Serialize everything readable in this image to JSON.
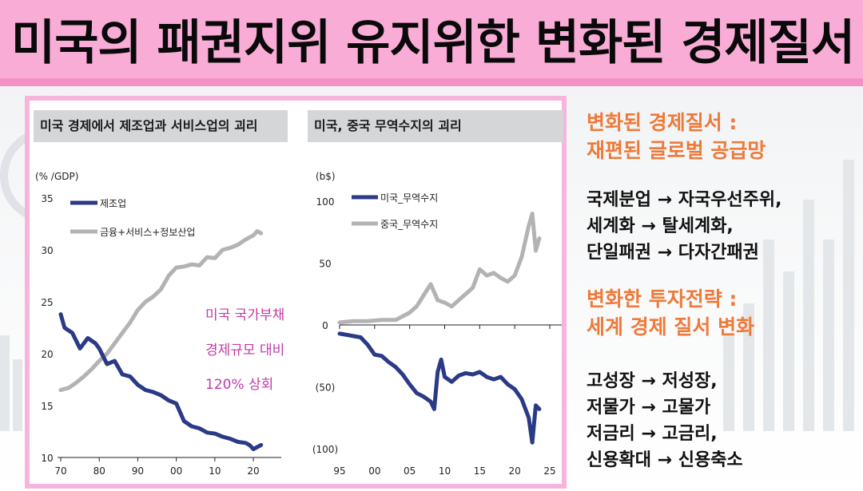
{
  "title": "미국의 패권지위 유지위한 변화된 경제질서",
  "left_chart": {
    "header": "미국 경제에서 제조업과 서비스업의 괴리",
    "unit_label": "(% /GDP)",
    "annotation": [
      "미국 국가부채",
      "경제규모 대비",
      "120% 상회"
    ],
    "chart_data": {
      "type": "line",
      "title": "미국 경제에서 제조업과 서비스업의 괴리",
      "ylabel": "(% /GDP)",
      "x_ticks": [
        "70",
        "80",
        "90",
        "00",
        "10",
        "20"
      ],
      "y_ticks": [
        "35",
        "30",
        "25",
        "20",
        "15",
        "10"
      ],
      "xlim": [
        1970,
        2026
      ],
      "ylim": [
        10,
        35
      ],
      "legend_position": "top-left",
      "series": [
        {
          "name": "제조업",
          "color": "#2b3a86",
          "x": [
            1970,
            1971,
            1973,
            1975,
            1977,
            1979,
            1980,
            1982,
            1984,
            1986,
            1988,
            1990,
            1992,
            1994,
            1996,
            1998,
            2000,
            2002,
            2004,
            2006,
            2008,
            2010,
            2012,
            2014,
            2016,
            2018,
            2019,
            2020,
            2021,
            2022
          ],
          "values": [
            23.8,
            22.5,
            22.0,
            20.5,
            21.5,
            21.0,
            20.5,
            19.0,
            19.3,
            18.0,
            17.8,
            17.0,
            16.5,
            16.3,
            16.0,
            15.5,
            15.2,
            13.5,
            13.0,
            12.8,
            12.4,
            12.3,
            12.0,
            11.8,
            11.5,
            11.4,
            11.2,
            10.8,
            11.0,
            11.2
          ]
        },
        {
          "name": "금융+서비스+정보산업",
          "color": "#b3b3b3",
          "x": [
            1970,
            1972,
            1974,
            1976,
            1978,
            1980,
            1982,
            1984,
            1986,
            1988,
            1990,
            1992,
            1994,
            1996,
            1998,
            2000,
            2002,
            2004,
            2006,
            2008,
            2010,
            2012,
            2014,
            2016,
            2018,
            2020,
            2021,
            2022
          ],
          "values": [
            16.5,
            16.7,
            17.2,
            17.8,
            18.5,
            19.3,
            20.0,
            21.0,
            22.0,
            23.0,
            24.2,
            25.0,
            25.5,
            26.2,
            27.5,
            28.3,
            28.4,
            28.6,
            28.5,
            29.3,
            29.2,
            30.0,
            30.2,
            30.5,
            31.0,
            31.4,
            31.8,
            31.6
          ]
        }
      ]
    }
  },
  "right_chart": {
    "header": "미국, 중국 무역수지의 괴리",
    "unit_label": "(b$)",
    "chart_data": {
      "type": "line",
      "title": "미국, 중국 무역수지의 괴리",
      "ylabel": "(b$)",
      "x_ticks": [
        "95",
        "00",
        "05",
        "10",
        "15",
        "20",
        "25"
      ],
      "y_ticks": [
        "100",
        "50",
        "0",
        "(50)",
        "(100)"
      ],
      "xlim": [
        1995,
        2025
      ],
      "ylim": [
        -100,
        100
      ],
      "legend_position": "top-left",
      "series": [
        {
          "name": "미국_무역수지",
          "color": "#2b3a86",
          "x": [
            1995,
            1996,
            1997,
            1998,
            1999,
            2000,
            2001,
            2002,
            2003,
            2004,
            2005,
            2006,
            2007,
            2008,
            2008.5,
            2009,
            2009.5,
            2010,
            2011,
            2012,
            2013,
            2014,
            2015,
            2016,
            2017,
            2018,
            2019,
            2020,
            2021,
            2022,
            2022.5,
            2023,
            2023.5
          ],
          "values": [
            -7,
            -8,
            -9,
            -10,
            -16,
            -24,
            -25,
            -30,
            -34,
            -40,
            -48,
            -55,
            -58,
            -62,
            -68,
            -38,
            -28,
            -42,
            -46,
            -41,
            -39,
            -40,
            -38,
            -42,
            -44,
            -42,
            -48,
            -52,
            -60,
            -75,
            -95,
            -65,
            -68
          ]
        },
        {
          "name": "중국_무역수지",
          "color": "#b3b3b3",
          "x": [
            1995,
            1997,
            1999,
            2001,
            2003,
            2004,
            2005,
            2006,
            2007,
            2008,
            2009,
            2010,
            2011,
            2012,
            2013,
            2014,
            2015,
            2016,
            2017,
            2018,
            2019,
            2020,
            2021,
            2022,
            2022.5,
            2023,
            2023.5
          ],
          "values": [
            2,
            3,
            3,
            4,
            4,
            7,
            10,
            15,
            24,
            33,
            20,
            18,
            15,
            20,
            25,
            30,
            45,
            40,
            42,
            38,
            35,
            40,
            55,
            80,
            90,
            60,
            70
          ]
        }
      ]
    }
  },
  "section1": {
    "heading_lines": [
      "변화된 경제질서 :",
      "재편된 글로벌 공급망"
    ],
    "items": [
      "국제분업 → 자국우선주위,",
      "세계화 → 탈세계화,",
      "단일패권 → 다자간패권"
    ]
  },
  "section2": {
    "heading_lines": [
      "변화한 투자전략 :",
      "세계 경제 질서 변화"
    ],
    "items": [
      "고성장 → 저성장,",
      "저물가 → 고물가",
      "저금리 → 고금리,",
      "신용확대 → 신용축소"
    ]
  },
  "colors": {
    "title_bg": "#f9acd6",
    "frame_border": "#f7b5dc",
    "heading": "#ee7a3a",
    "annotation": "#c33aa7"
  }
}
